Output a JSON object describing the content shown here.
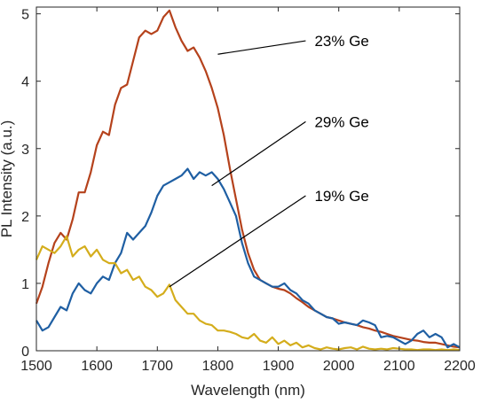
{
  "chart_data": {
    "type": "line",
    "title": "",
    "xlabel": "Wavelength (nm)",
    "ylabel": "PL Intensity (a.u.)",
    "xlim": [
      1500,
      2200
    ],
    "ylim": [
      0,
      5.1
    ],
    "xticks": [
      1500,
      1600,
      1700,
      1800,
      1900,
      2000,
      2100,
      2200
    ],
    "yticks": [
      0,
      1,
      2,
      3,
      4,
      5
    ],
    "grid": false,
    "legend": "none",
    "series": [
      {
        "name": "23% Ge",
        "color": "#b5421c",
        "x": [
          1500,
          1510,
          1520,
          1530,
          1540,
          1550,
          1560,
          1570,
          1580,
          1590,
          1600,
          1610,
          1620,
          1630,
          1640,
          1650,
          1660,
          1670,
          1680,
          1690,
          1700,
          1710,
          1720,
          1730,
          1740,
          1750,
          1760,
          1770,
          1780,
          1790,
          1800,
          1810,
          1820,
          1830,
          1840,
          1850,
          1860,
          1870,
          1880,
          1890,
          1900,
          1910,
          1920,
          1930,
          1940,
          1950,
          1960,
          1970,
          1980,
          1990,
          2000,
          2010,
          2020,
          2030,
          2040,
          2050,
          2060,
          2070,
          2080,
          2090,
          2100,
          2110,
          2120,
          2130,
          2140,
          2150,
          2160,
          2170,
          2180,
          2190,
          2200
        ],
        "y": [
          0.7,
          0.95,
          1.3,
          1.6,
          1.75,
          1.65,
          1.95,
          2.35,
          2.35,
          2.65,
          3.05,
          3.25,
          3.2,
          3.65,
          3.9,
          3.95,
          4.3,
          4.65,
          4.75,
          4.7,
          4.75,
          4.95,
          5.05,
          4.8,
          4.6,
          4.45,
          4.5,
          4.35,
          4.15,
          3.9,
          3.6,
          3.2,
          2.7,
          2.25,
          1.8,
          1.45,
          1.2,
          1.05,
          1.0,
          0.95,
          0.92,
          0.9,
          0.85,
          0.78,
          0.72,
          0.65,
          0.6,
          0.55,
          0.5,
          0.48,
          0.45,
          0.42,
          0.4,
          0.38,
          0.35,
          0.33,
          0.3,
          0.28,
          0.25,
          0.22,
          0.2,
          0.18,
          0.16,
          0.15,
          0.13,
          0.12,
          0.12,
          0.1,
          0.08,
          0.06,
          0.05
        ]
      },
      {
        "name": "29% Ge",
        "color": "#1f5fa3",
        "x": [
          1500,
          1510,
          1520,
          1530,
          1540,
          1550,
          1560,
          1570,
          1580,
          1590,
          1600,
          1610,
          1620,
          1630,
          1640,
          1650,
          1660,
          1670,
          1680,
          1690,
          1700,
          1710,
          1720,
          1730,
          1740,
          1750,
          1760,
          1770,
          1780,
          1790,
          1800,
          1810,
          1820,
          1830,
          1840,
          1850,
          1860,
          1870,
          1880,
          1890,
          1900,
          1910,
          1920,
          1930,
          1940,
          1950,
          1960,
          1970,
          1980,
          1990,
          2000,
          2010,
          2020,
          2030,
          2040,
          2050,
          2060,
          2070,
          2080,
          2090,
          2100,
          2110,
          2120,
          2130,
          2140,
          2150,
          2160,
          2170,
          2180,
          2190,
          2200
        ],
        "y": [
          0.45,
          0.3,
          0.35,
          0.5,
          0.65,
          0.6,
          0.85,
          1.0,
          0.9,
          0.85,
          1.0,
          1.1,
          1.05,
          1.3,
          1.45,
          1.75,
          1.65,
          1.75,
          1.85,
          2.05,
          2.3,
          2.45,
          2.5,
          2.55,
          2.6,
          2.7,
          2.55,
          2.65,
          2.6,
          2.65,
          2.55,
          2.4,
          2.2,
          2.0,
          1.6,
          1.3,
          1.1,
          1.05,
          1.0,
          0.95,
          0.95,
          1.0,
          0.9,
          0.85,
          0.75,
          0.7,
          0.6,
          0.55,
          0.5,
          0.48,
          0.4,
          0.42,
          0.4,
          0.38,
          0.45,
          0.42,
          0.38,
          0.2,
          0.22,
          0.2,
          0.15,
          0.1,
          0.15,
          0.25,
          0.3,
          0.2,
          0.25,
          0.2,
          0.05,
          0.1,
          0.05
        ]
      },
      {
        "name": "19% Ge",
        "color": "#d4ad1c",
        "x": [
          1500,
          1510,
          1520,
          1530,
          1540,
          1550,
          1560,
          1570,
          1580,
          1590,
          1600,
          1610,
          1620,
          1630,
          1640,
          1650,
          1660,
          1670,
          1680,
          1690,
          1700,
          1710,
          1720,
          1730,
          1740,
          1750,
          1760,
          1770,
          1780,
          1790,
          1800,
          1810,
          1820,
          1830,
          1840,
          1850,
          1860,
          1870,
          1880,
          1890,
          1900,
          1910,
          1920,
          1930,
          1940,
          1950,
          1960,
          1970,
          1980,
          1990,
          2000,
          2010,
          2020,
          2030,
          2040,
          2050,
          2060,
          2070,
          2080,
          2090,
          2100,
          2110,
          2120,
          2130,
          2140,
          2150,
          2160,
          2170,
          2180,
          2190,
          2200
        ],
        "y": [
          1.35,
          1.55,
          1.5,
          1.45,
          1.55,
          1.7,
          1.4,
          1.5,
          1.55,
          1.4,
          1.5,
          1.35,
          1.3,
          1.3,
          1.15,
          1.2,
          1.05,
          1.1,
          0.95,
          0.9,
          0.8,
          0.85,
          0.98,
          0.75,
          0.65,
          0.55,
          0.55,
          0.45,
          0.4,
          0.38,
          0.3,
          0.3,
          0.28,
          0.25,
          0.2,
          0.18,
          0.25,
          0.15,
          0.12,
          0.2,
          0.1,
          0.15,
          0.08,
          0.12,
          0.05,
          0.08,
          0.04,
          0.02,
          0.05,
          0.03,
          0.02,
          0.04,
          0.05,
          0.02,
          0.06,
          0.03,
          0.02,
          0.03,
          0.02,
          0.04,
          0.03,
          0.02,
          0.02,
          0.01,
          0.02,
          0.02,
          0.01,
          0.02,
          0.01,
          0.02,
          0.01
        ]
      }
    ],
    "annotations": [
      {
        "text": "23% Ge",
        "series": "23% Ge",
        "point_x": 1800,
        "point_y": 4.4,
        "label_x": 1960,
        "label_y": 4.6
      },
      {
        "text": "29% Ge",
        "series": "29% Ge",
        "point_x": 1790,
        "point_y": 2.45,
        "label_x": 1960,
        "label_y": 3.4
      },
      {
        "text": "19% Ge",
        "series": "19% Ge",
        "point_x": 1720,
        "point_y": 0.95,
        "label_x": 1960,
        "label_y": 2.3
      }
    ]
  }
}
